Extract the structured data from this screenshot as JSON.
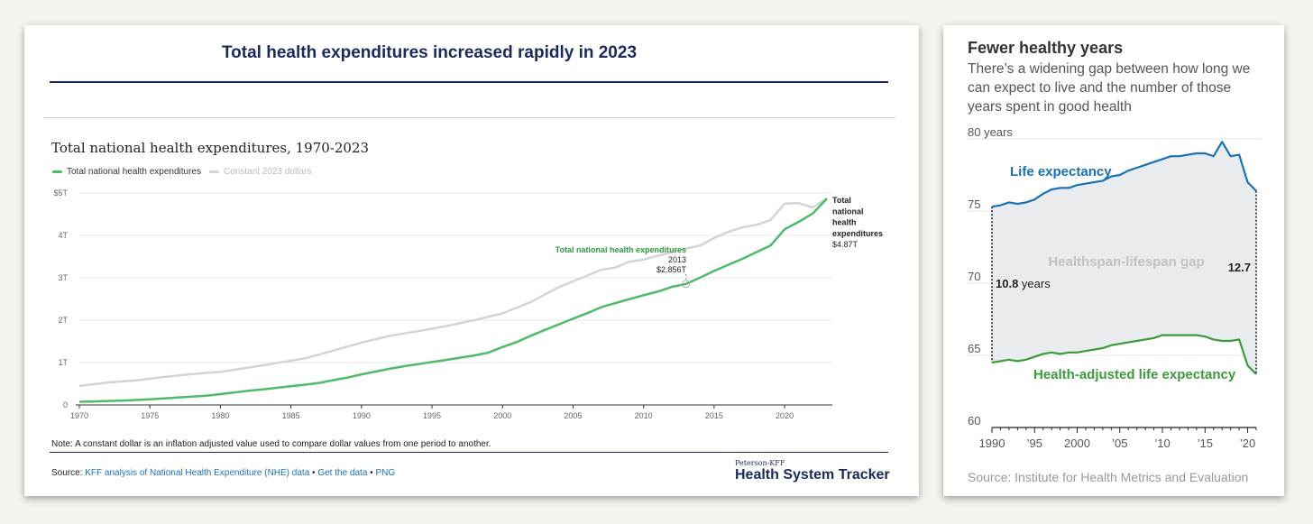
{
  "left": {
    "title": "Total health expenditures increased rapidly in 2023",
    "note": "Note: A constant dollar is an inflation adjusted value used to compare dollar values from one period to another.",
    "source": {
      "prefix": "Source:",
      "link1": "KFF analysis of National Health Expenditure (NHE) data",
      "sep1": "•",
      "link2": "Get the data",
      "sep2": "•",
      "link3": "PNG"
    },
    "brand_small": "Peterson-KFF",
    "brand_big": "Health System Tracker"
  },
  "right": {
    "title": "Fewer healthy years",
    "subtitle": "There’s a widening gap between how long we can expect to live and the number of those years spent in good health",
    "source": "Source: Institute for Health Metrics and Evaluation"
  },
  "chart_data": [
    {
      "type": "line",
      "title": "Total national health expenditures, 1970-2023",
      "xlim": [
        1970,
        2023
      ],
      "ylim": [
        0,
        5
      ],
      "x_ticks": [
        "1970",
        "1975",
        "1980",
        "1985",
        "1990",
        "1995",
        "2000",
        "2005",
        "2010",
        "2015",
        "2020"
      ],
      "x_tick_values": [
        1970,
        1975,
        1980,
        1985,
        1990,
        1995,
        2000,
        2005,
        2010,
        2015,
        2020
      ],
      "y_ticks": [
        "0",
        "1T",
        "2T",
        "3T",
        "4T",
        "$5T"
      ],
      "y_tick_values": [
        0,
        1,
        2,
        3,
        4,
        5
      ],
      "grid": true,
      "legend": [
        "Total national health expenditures",
        "Constant 2023 dollars"
      ],
      "colors": {
        "nominal": "#4dbb6a",
        "constant": "#d3d3da",
        "annot": "#2f9a3e",
        "axis": "#333333",
        "grid": "#e8e8e8",
        "tick": "#666666"
      },
      "series": [
        {
          "name": "Total national health expenditures",
          "x": [
            1970,
            1971,
            1972,
            1973,
            1974,
            1975,
            1976,
            1977,
            1978,
            1979,
            1980,
            1981,
            1982,
            1983,
            1984,
            1985,
            1986,
            1987,
            1988,
            1989,
            1990,
            1991,
            1992,
            1993,
            1994,
            1995,
            1996,
            1997,
            1998,
            1999,
            2000,
            2001,
            2002,
            2003,
            2004,
            2005,
            2006,
            2007,
            2008,
            2009,
            2010,
            2011,
            2012,
            2013,
            2014,
            2015,
            2016,
            2017,
            2018,
            2019,
            2020,
            2021,
            2022,
            2023
          ],
          "values": [
            0.075,
            0.083,
            0.094,
            0.103,
            0.116,
            0.133,
            0.153,
            0.174,
            0.195,
            0.22,
            0.255,
            0.295,
            0.333,
            0.368,
            0.405,
            0.443,
            0.478,
            0.52,
            0.585,
            0.645,
            0.721,
            0.788,
            0.854,
            0.913,
            0.962,
            1.012,
            1.062,
            1.114,
            1.169,
            1.233,
            1.365,
            1.482,
            1.632,
            1.771,
            1.902,
            2.036,
            2.164,
            2.306,
            2.403,
            2.496,
            2.589,
            2.673,
            2.785,
            2.856,
            3.002,
            3.162,
            3.307,
            3.447,
            3.604,
            3.76,
            4.144,
            4.32,
            4.52,
            4.87
          ]
        },
        {
          "name": "Constant 2023 dollars",
          "x": [
            1970,
            1972,
            1974,
            1976,
            1978,
            1980,
            1982,
            1984,
            1986,
            1988,
            1990,
            1992,
            1994,
            1996,
            1998,
            2000,
            2002,
            2004,
            2006,
            2007,
            2008,
            2009,
            2010,
            2011,
            2012,
            2013,
            2014,
            2015,
            2016,
            2017,
            2018,
            2019,
            2020,
            2021,
            2022,
            2023
          ],
          "values": [
            0.45,
            0.53,
            0.58,
            0.66,
            0.73,
            0.78,
            0.88,
            0.99,
            1.1,
            1.28,
            1.47,
            1.63,
            1.74,
            1.86,
            2.0,
            2.16,
            2.43,
            2.78,
            3.05,
            3.19,
            3.24,
            3.38,
            3.43,
            3.52,
            3.6,
            3.69,
            3.76,
            3.94,
            4.08,
            4.19,
            4.25,
            4.36,
            4.75,
            4.76,
            4.66,
            4.87
          ]
        }
      ],
      "annotations": {
        "point_label": "Total national health expenditures",
        "point_year": "2013",
        "point_value": "$2.856T",
        "point_x": 2013,
        "point_y": 2.856,
        "end_label": [
          "Total",
          "national",
          "health",
          "expenditures"
        ],
        "end_value": "$4.87T"
      }
    },
    {
      "type": "area",
      "title": "Fewer healthy years",
      "xlim": [
        1990,
        2021
      ],
      "ylim": [
        60,
        80
      ],
      "x_ticks": [
        "1990",
        "’95",
        "2000",
        "’05",
        "’10",
        "’15",
        "’20"
      ],
      "x_tick_values": [
        1990,
        1995,
        2000,
        2005,
        2010,
        2015,
        2020
      ],
      "y_ticks": [
        "60",
        "65",
        "70",
        "75",
        "80 years"
      ],
      "y_tick_values": [
        60,
        65,
        70,
        75,
        80
      ],
      "colors": {
        "life": "#1a72b4",
        "health": "#3c9a3c",
        "gap": "#e9ecef",
        "grid": "#e6e6e6",
        "tick": "#555555",
        "axis": "#222222",
        "gap_label": "#c2c2c2"
      },
      "series": [
        {
          "name": "Life expectancy",
          "x": [
            1990,
            1991,
            1992,
            1993,
            1994,
            1995,
            1996,
            1997,
            1998,
            1999,
            2000,
            2001,
            2002,
            2003,
            2004,
            2005,
            2006,
            2007,
            2008,
            2009,
            2010,
            2011,
            2012,
            2013,
            2014,
            2015,
            2016,
            2017,
            2018,
            2019,
            2020,
            2021
          ],
          "values": [
            75.3,
            75.4,
            75.6,
            75.5,
            75.6,
            75.8,
            76.2,
            76.5,
            76.6,
            76.6,
            76.8,
            76.9,
            77.0,
            77.1,
            77.4,
            77.5,
            77.8,
            78.0,
            78.2,
            78.4,
            78.6,
            78.8,
            78.8,
            78.9,
            79.0,
            79.0,
            78.8,
            79.8,
            78.8,
            78.9,
            77.0,
            76.4
          ]
        },
        {
          "name": "Health-adjusted life expectancy",
          "x": [
            1990,
            1991,
            1992,
            1993,
            1994,
            1995,
            1996,
            1997,
            1998,
            1999,
            2000,
            2001,
            2002,
            2003,
            2004,
            2005,
            2006,
            2007,
            2008,
            2009,
            2010,
            2011,
            2012,
            2013,
            2014,
            2015,
            2016,
            2017,
            2018,
            2019,
            2020,
            2021
          ],
          "values": [
            64.5,
            64.6,
            64.7,
            64.6,
            64.7,
            64.9,
            65.1,
            65.2,
            65.1,
            65.2,
            65.2,
            65.3,
            65.4,
            65.5,
            65.7,
            65.8,
            65.9,
            66.0,
            66.1,
            66.2,
            66.4,
            66.4,
            66.4,
            66.4,
            66.4,
            66.3,
            66.1,
            66.0,
            66.0,
            66.1,
            64.3,
            63.7
          ]
        }
      ],
      "labels": {
        "life": "Life expectancy",
        "health": "Health-adjusted life expectancy",
        "gap": "Healthspan-lifespan gap",
        "gap_start_value": "10.8",
        "gap_start_unit": "years",
        "gap_end_value": "12.7"
      }
    }
  ]
}
